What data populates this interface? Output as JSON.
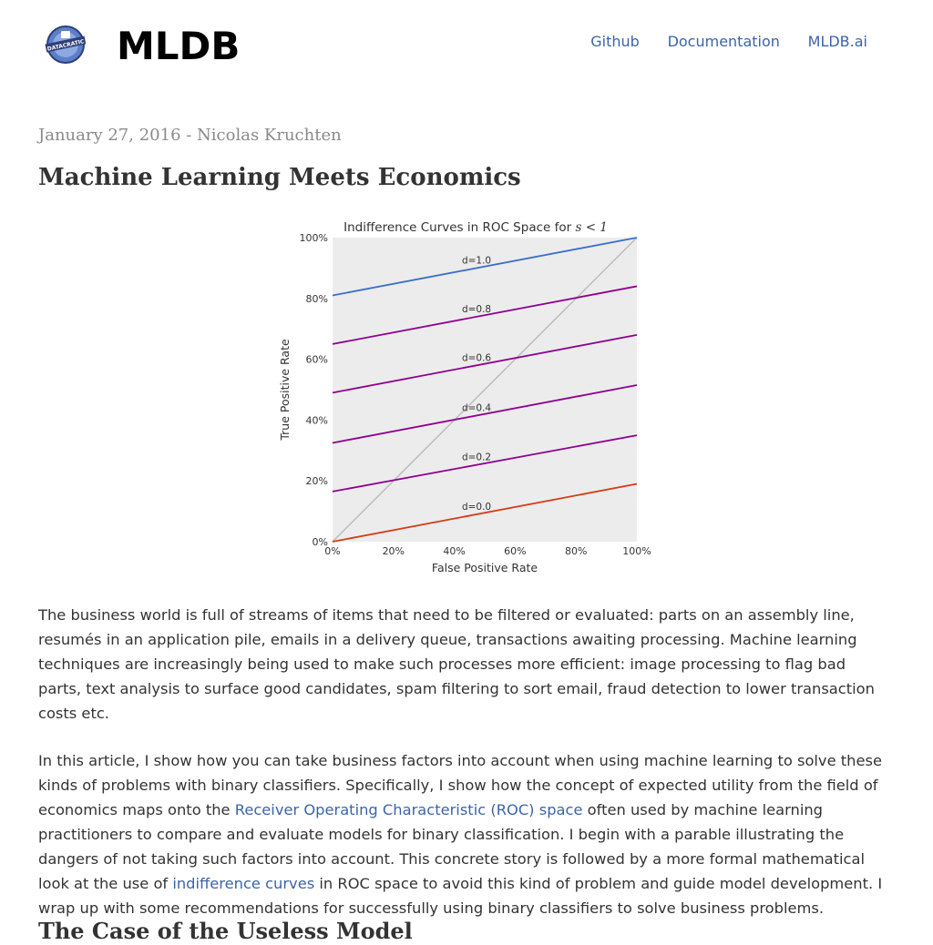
{
  "header": {
    "brand": "MLDB",
    "logo_text": "DATACRATIC",
    "nav": [
      {
        "label": "Github"
      },
      {
        "label": "Documentation"
      },
      {
        "label": "MLDB.ai"
      }
    ]
  },
  "post": {
    "meta": "January 27, 2016 - Nicolas Kruchten",
    "title": "Machine Learning Meets Economics",
    "paragraph1": "The business world is full of streams of items that need to be filtered or evaluated: parts on an assembly line, resumés in an application pile, emails in a delivery queue, transactions awaiting processing. Machine learning techniques are increasingly being used to make such processes more efficient: image processing to flag bad parts, text analysis to surface good candidates, spam filtering to sort email, fraud detection to lower transaction costs etc.",
    "paragraph2_a": "In this article, I show how you can take business factors into account when using machine learning to solve these kinds of problems with binary classifiers. Specifically, I show how the concept of expected utility from the field of economics maps onto the ",
    "paragraph2_link1": "Receiver Operating Characteristic (ROC) space",
    "paragraph2_b": " often used by machine learning practitioners to compare and evaluate models for binary classification. I begin with a parable illustrating the dangers of not taking such factors into account. This concrete story is followed by a more formal mathematical look at the use of ",
    "paragraph2_link2": "indifference curves",
    "paragraph2_c": " in ROC space to avoid this kind of problem and guide model development. I wrap up with some recommendations for successfully using binary classifiers to solve business problems.",
    "subheading": "The Case of the Useless Model"
  },
  "chart_data": {
    "type": "line",
    "title": "Indifference Curves in ROC Space for",
    "title_math": "s < 1",
    "xlabel": "False Positive Rate",
    "ylabel": "True Positive Rate",
    "xlim": [
      0,
      1
    ],
    "ylim": [
      0,
      1
    ],
    "xticks": [
      "0%",
      "20%",
      "40%",
      "60%",
      "80%",
      "100%"
    ],
    "yticks": [
      "0%",
      "20%",
      "40%",
      "60%",
      "80%",
      "100%"
    ],
    "grid": false,
    "background": "#ececec",
    "diagonal": {
      "x": [
        0,
        1
      ],
      "y": [
        0,
        1
      ],
      "color": "#bbbbbb"
    },
    "series": [
      {
        "name": "d=1.0",
        "x": [
          0,
          1
        ],
        "y": [
          0.81,
          1.0
        ],
        "color": "#3a6fc9"
      },
      {
        "name": "d=0.8",
        "x": [
          0,
          1
        ],
        "y": [
          0.65,
          0.84
        ],
        "color": "#900090"
      },
      {
        "name": "d=0.6",
        "x": [
          0,
          1
        ],
        "y": [
          0.49,
          0.68
        ],
        "color": "#900090"
      },
      {
        "name": "d=0.4",
        "x": [
          0,
          1
        ],
        "y": [
          0.325,
          0.515
        ],
        "color": "#900090"
      },
      {
        "name": "d=0.2",
        "x": [
          0,
          1
        ],
        "y": [
          0.165,
          0.35
        ],
        "color": "#900090"
      },
      {
        "name": "d=0.0",
        "x": [
          0,
          1
        ],
        "y": [
          0.0,
          0.19
        ],
        "color": "#d53a14"
      }
    ],
    "annotations": [
      "d=1.0",
      "d=0.8",
      "d=0.6",
      "d=0.4",
      "d=0.2",
      "d=0.0"
    ]
  }
}
